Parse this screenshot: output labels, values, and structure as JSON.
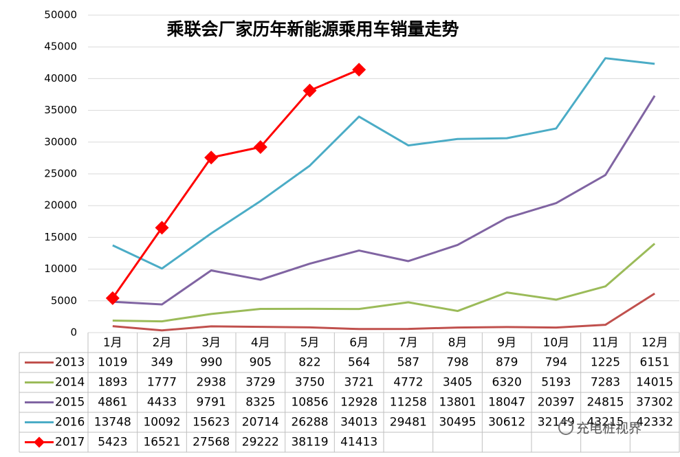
{
  "chart_data": {
    "type": "line",
    "title": "乘联会厂家历年新能源乘用车销量走势",
    "categories": [
      "1月",
      "2月",
      "3月",
      "4月",
      "5月",
      "6月",
      "7月",
      "8月",
      "9月",
      "10月",
      "11月",
      "12月"
    ],
    "ylim": [
      0,
      50000
    ],
    "yticks": [
      0,
      5000,
      10000,
      15000,
      20000,
      25000,
      30000,
      35000,
      40000,
      45000,
      50000
    ],
    "grid": true,
    "series": [
      {
        "name": "2013",
        "color": "#c0504d",
        "values": [
          1019,
          349,
          990,
          905,
          822,
          564,
          587,
          798,
          879,
          794,
          1225,
          6151
        ]
      },
      {
        "name": "2014",
        "color": "#9bbb59",
        "values": [
          1893,
          1777,
          2938,
          3729,
          3750,
          3721,
          4772,
          3405,
          6320,
          5193,
          7283,
          14015
        ]
      },
      {
        "name": "2015",
        "color": "#8064a2",
        "values": [
          4861,
          4433,
          9791,
          8325,
          10856,
          12928,
          11258,
          13801,
          18047,
          20397,
          24815,
          37302
        ]
      },
      {
        "name": "2016",
        "color": "#4bacc6",
        "values": [
          13748,
          10092,
          15623,
          20714,
          26288,
          34013,
          29481,
          30495,
          30612,
          32149,
          43215,
          42332
        ]
      },
      {
        "name": "2017",
        "color": "#ff0000",
        "marker": "diamond",
        "values": [
          5423,
          16521,
          27568,
          29222,
          38119,
          41413,
          null,
          null,
          null,
          null,
          null,
          null
        ]
      }
    ]
  },
  "watermark": "充电桩视界"
}
